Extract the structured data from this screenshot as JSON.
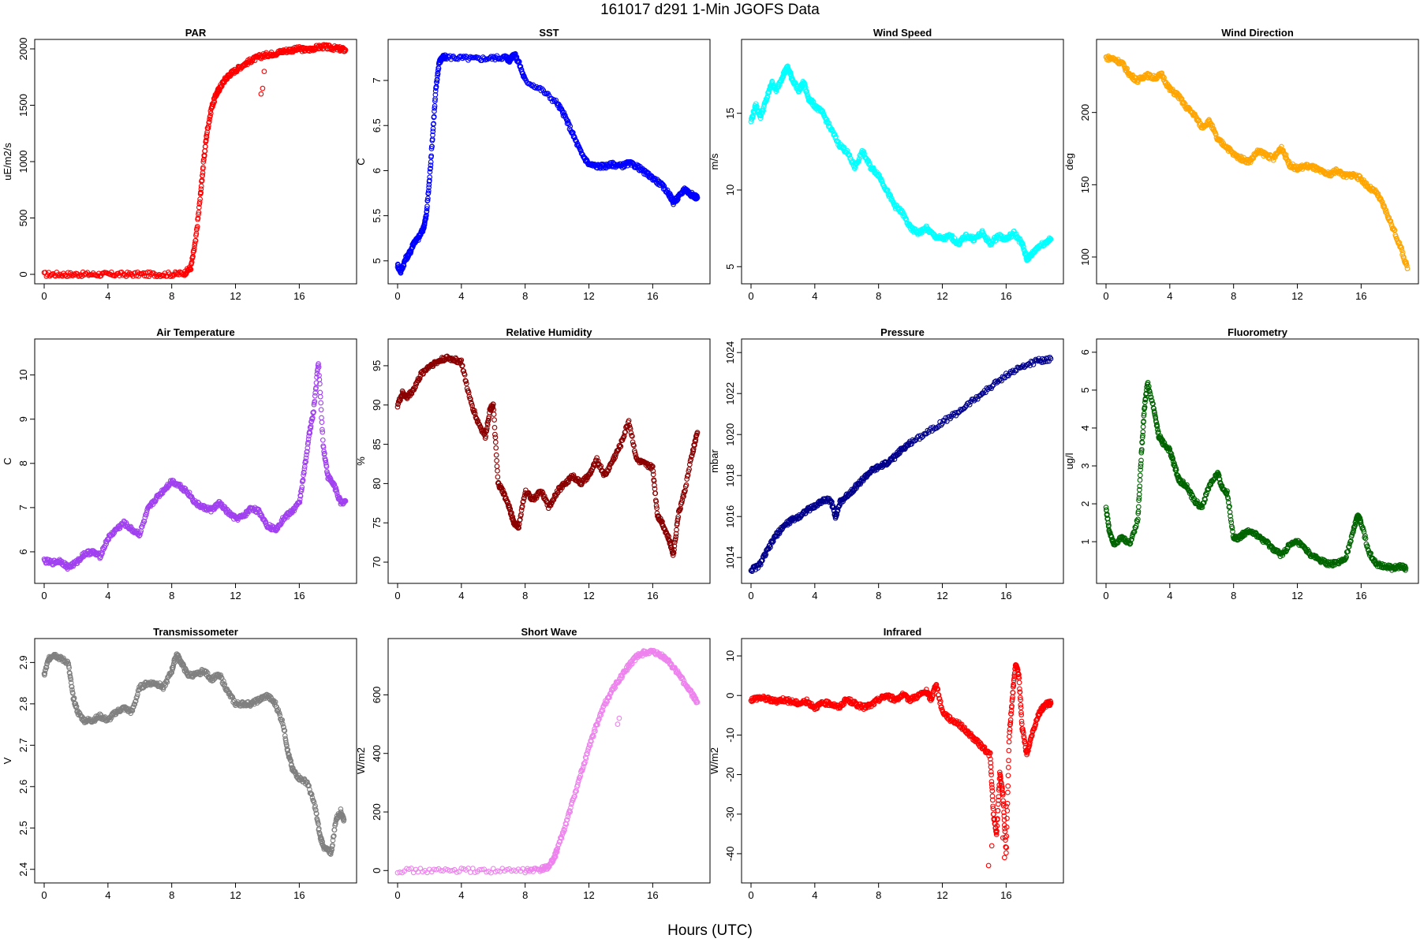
{
  "page": {
    "title": "161017   d291   1-Min  JGOFS Data",
    "xlabel": "Hours (UTC)"
  },
  "chart_data": [
    {
      "type": "scatter",
      "title": "PAR",
      "ylabel": "uE/m2/s",
      "color": "#ff0000",
      "xlim": [
        0,
        19
      ],
      "ylim": [
        0,
        2000
      ],
      "xticks": [
        0,
        4,
        8,
        12,
        16
      ],
      "yticks": [
        0,
        500,
        1000,
        1500,
        2000
      ],
      "x": [
        0,
        1,
        2,
        3,
        4,
        5,
        6,
        7,
        8,
        8.8,
        9.2,
        9.5,
        9.8,
        10,
        10.2,
        10.5,
        10.8,
        11,
        11.3,
        11.6,
        12,
        12.5,
        13,
        13.5,
        14,
        14.5,
        15,
        15.5,
        16,
        16.5,
        17,
        17.5,
        18,
        18.5,
        18.9
      ],
      "y": [
        0,
        0,
        0,
        0,
        0,
        0,
        0,
        0,
        0,
        10,
        60,
        300,
        700,
        1000,
        1250,
        1480,
        1600,
        1650,
        1720,
        1770,
        1810,
        1860,
        1900,
        1930,
        1950,
        1960,
        1980,
        1990,
        2000,
        1990,
        2010,
        2020,
        2010,
        2000,
        1990
      ],
      "outliers": {
        "x": [
          13.6,
          13.7,
          13.8
        ],
        "y": [
          1600,
          1650,
          1800
        ]
      }
    },
    {
      "type": "scatter",
      "title": "SST",
      "ylabel": "C",
      "color": "#0000ff",
      "xlim": [
        0,
        19
      ],
      "ylim": [
        4.85,
        7.35
      ],
      "xticks": [
        0,
        4,
        8,
        12,
        16
      ],
      "yticks": [
        5.0,
        5.5,
        6.0,
        6.5,
        7.0
      ],
      "x": [
        0,
        0.2,
        0.5,
        0.8,
        1,
        1.3,
        1.6,
        1.8,
        2,
        2.2,
        2.4,
        2.6,
        2.8,
        3,
        4,
        5,
        6,
        6.8,
        7,
        7.3,
        7.6,
        8,
        9,
        10,
        10.5,
        11,
        11.5,
        12,
        12.5,
        13,
        13.5,
        14,
        14.5,
        15,
        15.5,
        16,
        16.5,
        17,
        17.3,
        17.6,
        18,
        18.3,
        18.6,
        18.8
      ],
      "y": [
        4.95,
        4.88,
        5.02,
        5.1,
        5.2,
        5.25,
        5.35,
        5.5,
        5.9,
        6.4,
        6.9,
        7.2,
        7.25,
        7.26,
        7.25,
        7.24,
        7.25,
        7.26,
        7.22,
        7.3,
        7.2,
        7.0,
        6.9,
        6.75,
        6.6,
        6.4,
        6.2,
        6.07,
        6.05,
        6.05,
        6.07,
        6.05,
        6.08,
        6.05,
        5.98,
        5.92,
        5.85,
        5.75,
        5.65,
        5.7,
        5.8,
        5.75,
        5.72,
        5.7
      ],
      "outliers": {
        "x": [],
        "y": []
      }
    },
    {
      "type": "scatter",
      "title": "Wind Speed",
      "ylabel": "m/s",
      "color": "#00ffff",
      "xlim": [
        0,
        19
      ],
      "ylim": [
        4.5,
        19.2
      ],
      "xticks": [
        0,
        4,
        8,
        12,
        16
      ],
      "yticks": [
        5,
        10,
        15
      ],
      "x": [
        0,
        0.3,
        0.6,
        1,
        1.3,
        1.6,
        2,
        2.3,
        2.6,
        3,
        3.3,
        3.6,
        4,
        4.5,
        5,
        5.5,
        6,
        6.5,
        7,
        7.5,
        8,
        8.5,
        9,
        9.5,
        10,
        10.5,
        11,
        11.5,
        12,
        12.5,
        13,
        13.5,
        14,
        14.5,
        15,
        15.5,
        16,
        16.5,
        17,
        17.3,
        17.6,
        18,
        18.5,
        18.8
      ],
      "y": [
        14.5,
        15.5,
        14.8,
        16,
        17,
        16.5,
        17.5,
        18,
        17.2,
        16.5,
        17,
        16,
        15.5,
        15,
        14,
        13,
        12.5,
        11.5,
        12.5,
        11.5,
        11,
        10,
        9,
        8.5,
        7.5,
        7.2,
        7.5,
        7,
        6.8,
        7,
        6.5,
        7,
        6.8,
        7.2,
        6.5,
        7,
        6.8,
        7.2,
        6.5,
        5.5,
        5.8,
        6.3,
        6.6,
        6.8
      ],
      "outliers": {
        "x": [],
        "y": []
      }
    },
    {
      "type": "scatter",
      "title": "Wind Direction",
      "ylabel": "deg",
      "color": "#ffa500",
      "xlim": [
        0,
        19
      ],
      "ylim": [
        88,
        244
      ],
      "xticks": [
        0,
        4,
        8,
        12,
        16
      ],
      "yticks": [
        100,
        150,
        200
      ],
      "x": [
        0,
        0.5,
        1,
        1.5,
        2,
        2.5,
        3,
        3.5,
        4,
        4.5,
        5,
        5.5,
        6,
        6.5,
        7,
        7.5,
        8,
        8.5,
        9,
        9.5,
        10,
        10.5,
        11,
        11.5,
        12,
        12.5,
        13,
        13.5,
        14,
        14.5,
        15,
        15.5,
        16,
        16.5,
        17,
        17.5,
        18,
        18.5,
        18.9
      ],
      "y": [
        238,
        237,
        234,
        226,
        222,
        226,
        224,
        226,
        216,
        212,
        204,
        199,
        190,
        194,
        181,
        177,
        171,
        168,
        166,
        173,
        171,
        168,
        176,
        164,
        161,
        163,
        162,
        159,
        157,
        160,
        156,
        157,
        154,
        148,
        144,
        133,
        120,
        106,
        92
      ],
      "outliers": {
        "x": [],
        "y": []
      }
    },
    {
      "type": "scatter",
      "title": "Air Temperature",
      "ylabel": "C",
      "color": "#a040f0",
      "xlim": [
        0,
        19
      ],
      "ylim": [
        5.5,
        10.6
      ],
      "xticks": [
        0,
        4,
        8,
        12,
        16
      ],
      "yticks": [
        6,
        7,
        8,
        9,
        10
      ],
      "x": [
        0,
        0.5,
        1,
        1.5,
        2,
        2.5,
        3,
        3.5,
        4,
        4.5,
        5,
        5.5,
        6,
        6.5,
        7,
        7.5,
        8,
        8.5,
        9,
        9.5,
        10,
        10.5,
        11,
        11.5,
        12,
        12.5,
        13,
        13.5,
        14,
        14.5,
        15,
        15.5,
        16,
        16.3,
        16.6,
        16.9,
        17.2,
        17.5,
        17.8,
        18.2,
        18.6,
        18.9
      ],
      "y": [
        5.8,
        5.75,
        5.8,
        5.65,
        5.75,
        5.95,
        6.0,
        5.9,
        6.3,
        6.5,
        6.65,
        6.5,
        6.4,
        6.95,
        7.2,
        7.4,
        7.6,
        7.5,
        7.35,
        7.1,
        7.0,
        6.95,
        7.1,
        6.9,
        6.75,
        6.8,
        7.0,
        6.9,
        6.6,
        6.5,
        6.75,
        6.9,
        7.1,
        7.8,
        8.6,
        9.2,
        10.3,
        8.4,
        7.7,
        7.5,
        7.1,
        7.15
      ],
      "outliers": {
        "x": [],
        "y": []
      }
    },
    {
      "type": "scatter",
      "title": "Relative Humidity",
      "ylabel": "%",
      "color": "#8b0000",
      "xlim": [
        0,
        19
      ],
      "ylim": [
        68.5,
        97.2
      ],
      "xticks": [
        0,
        4,
        8,
        12,
        16
      ],
      "yticks": [
        70,
        75,
        80,
        85,
        90,
        95
      ],
      "x": [
        0,
        0.3,
        0.6,
        1,
        1.5,
        2,
        2.5,
        3,
        3.5,
        4,
        4.5,
        5,
        5.5,
        5.8,
        6,
        6.3,
        6.6,
        7,
        7.3,
        7.6,
        8,
        8.5,
        9,
        9.5,
        10,
        10.5,
        11,
        11.5,
        12,
        12.5,
        13,
        13.5,
        14,
        14.5,
        15,
        15.5,
        16,
        16.3,
        16.6,
        17,
        17.3,
        17.6,
        18,
        18.5,
        18.8
      ],
      "y": [
        90,
        91.5,
        91,
        92,
        94,
        95,
        95.5,
        96,
        95.8,
        95.5,
        91,
        88,
        86,
        89.5,
        90,
        80,
        79,
        77,
        75,
        74.5,
        79,
        78,
        79,
        77,
        79,
        80,
        81,
        80,
        81,
        83,
        81,
        83,
        85,
        88,
        83,
        82.5,
        82,
        76,
        75,
        73,
        71,
        76,
        79,
        84,
        86.5
      ],
      "outliers": {
        "x": [],
        "y": []
      }
    },
    {
      "type": "scatter",
      "title": "Pressure",
      "ylabel": "mbar",
      "color": "#00008b",
      "xlim": [
        0,
        19
      ],
      "ylim": [
        1013.2,
        1024.2
      ],
      "xticks": [
        0,
        4,
        8,
        12,
        16
      ],
      "yticks": [
        1014,
        1016,
        1018,
        1020,
        1022,
        1024
      ],
      "x": [
        0,
        0.5,
        1,
        1.5,
        2,
        2.5,
        3,
        3.5,
        4,
        4.5,
        5,
        5.3,
        5.6,
        6,
        6.5,
        7,
        7.5,
        8,
        8.5,
        9,
        9.5,
        10,
        11,
        12,
        13,
        14,
        15,
        16,
        17,
        18,
        18.8
      ],
      "y": [
        1013.4,
        1013.6,
        1014.3,
        1015.0,
        1015.5,
        1015.8,
        1016.0,
        1016.3,
        1016.5,
        1016.8,
        1016.8,
        1016.0,
        1016.7,
        1017.0,
        1017.4,
        1017.8,
        1018.2,
        1018.4,
        1018.6,
        1018.9,
        1019.3,
        1019.6,
        1020.1,
        1020.6,
        1021.1,
        1021.7,
        1022.3,
        1022.9,
        1023.3,
        1023.6,
        1023.7
      ],
      "outliers": {
        "x": [],
        "y": []
      }
    },
    {
      "type": "scatter",
      "title": "Fluorometry",
      "ylabel": "ug/l",
      "color": "#006400",
      "xlim": [
        0,
        19
      ],
      "ylim": [
        0.15,
        6.1
      ],
      "xticks": [
        0,
        4,
        8,
        12,
        16
      ],
      "yticks": [
        1,
        2,
        3,
        4,
        5,
        6
      ],
      "x": [
        0,
        0.2,
        0.5,
        1,
        1.5,
        2,
        2.2,
        2.4,
        2.6,
        3,
        3.3,
        3.6,
        4,
        4.3,
        4.6,
        5,
        5.5,
        6,
        6.5,
        7,
        7.3,
        7.6,
        8,
        8.3,
        8.6,
        9,
        9.5,
        10,
        10.5,
        11,
        11.5,
        12,
        12.5,
        13,
        13.5,
        14,
        14.5,
        15,
        15.5,
        15.8,
        16,
        16.5,
        17,
        17.5,
        18,
        18.5,
        18.8
      ],
      "y": [
        1.9,
        1.3,
        0.95,
        1.1,
        0.95,
        1.6,
        3.2,
        4.5,
        5.2,
        4.5,
        3.8,
        3.6,
        3.4,
        3.0,
        2.6,
        2.5,
        2.1,
        1.9,
        2.5,
        2.8,
        2.4,
        2.3,
        1.1,
        1.1,
        1.2,
        1.3,
        1.15,
        1.0,
        0.8,
        0.65,
        0.9,
        1.0,
        0.8,
        0.6,
        0.5,
        0.4,
        0.45,
        0.5,
        1.3,
        1.7,
        1.5,
        0.7,
        0.4,
        0.35,
        0.3,
        0.35,
        0.3
      ],
      "outliers": {
        "x": [],
        "y": []
      }
    },
    {
      "type": "scatter",
      "title": "Transmissometer",
      "ylabel": "V",
      "color": "#808080",
      "xlim": [
        0,
        19
      ],
      "ylim": [
        2.39,
        2.935
      ],
      "xticks": [
        0,
        4,
        8,
        12,
        16
      ],
      "yticks": [
        2.4,
        2.5,
        2.6,
        2.7,
        2.8,
        2.9
      ],
      "x": [
        0,
        0.3,
        0.6,
        1,
        1.5,
        1.8,
        2.1,
        2.5,
        3,
        3.5,
        4,
        4.5,
        5,
        5.5,
        6,
        6.5,
        7,
        7.5,
        8,
        8.3,
        8.6,
        9,
        9.5,
        10,
        10.5,
        11,
        11.5,
        12,
        12.5,
        13,
        13.5,
        14,
        14.5,
        15,
        15.3,
        15.6,
        16,
        16.5,
        17,
        17.3,
        17.6,
        18,
        18.3,
        18.6,
        18.8
      ],
      "y": [
        2.87,
        2.91,
        2.92,
        2.91,
        2.9,
        2.82,
        2.78,
        2.76,
        2.76,
        2.77,
        2.76,
        2.78,
        2.79,
        2.78,
        2.84,
        2.85,
        2.85,
        2.84,
        2.88,
        2.92,
        2.9,
        2.87,
        2.87,
        2.88,
        2.86,
        2.87,
        2.83,
        2.8,
        2.8,
        2.8,
        2.81,
        2.82,
        2.8,
        2.75,
        2.68,
        2.64,
        2.62,
        2.61,
        2.55,
        2.48,
        2.45,
        2.44,
        2.52,
        2.54,
        2.52
      ],
      "outliers": {
        "x": [],
        "y": []
      }
    },
    {
      "type": "scatter",
      "title": "Short Wave",
      "ylabel": "W/m2",
      "color": "#ee82ee",
      "xlim": [
        0,
        19
      ],
      "ylim": [
        -10,
        760
      ],
      "xticks": [
        0,
        4,
        8,
        12,
        16
      ],
      "yticks": [
        0,
        200,
        400,
        600
      ],
      "x": [
        0,
        2,
        4,
        6,
        8,
        9,
        9.5,
        9.8,
        10,
        10.5,
        11,
        11.5,
        12,
        12.5,
        13,
        13.5,
        14,
        14.5,
        15,
        15.5,
        16,
        16.5,
        17,
        17.5,
        18,
        18.5,
        18.8
      ],
      "y": [
        0,
        0,
        0,
        0,
        0,
        3,
        15,
        40,
        70,
        150,
        240,
        330,
        420,
        500,
        570,
        620,
        660,
        700,
        730,
        745,
        745,
        735,
        715,
        680,
        640,
        600,
        575
      ],
      "outliers": {
        "x": [
          13.8,
          13.9
        ],
        "y": [
          500,
          520
        ]
      }
    },
    {
      "type": "scatter",
      "title": "Infrared",
      "ylabel": "W/m2",
      "color": "#ff0000",
      "xlim": [
        0,
        19
      ],
      "ylim": [
        -45,
        12
      ],
      "xticks": [
        0,
        4,
        8,
        12,
        16
      ],
      "yticks": [
        -40,
        -30,
        -20,
        -10,
        0,
        10
      ],
      "x": [
        0,
        0.5,
        1,
        1.5,
        2,
        2.5,
        3,
        3.5,
        4,
        4.5,
        5,
        5.5,
        6,
        6.5,
        7,
        7.5,
        8,
        8.5,
        9,
        9.5,
        10,
        10.5,
        11,
        11.3,
        11.6,
        12,
        12.5,
        13,
        13.5,
        14,
        14.5,
        15,
        15.2,
        15.4,
        15.6,
        15.8,
        16,
        16.2,
        16.4,
        16.6,
        16.8,
        17,
        17.3,
        17.6,
        18,
        18.3,
        18.6,
        18.8
      ],
      "y": [
        -1,
        -0.5,
        -0.8,
        -1.5,
        -1,
        -1.5,
        -2,
        -1.5,
        -3,
        -2,
        -2,
        -3,
        -1,
        -2,
        -3,
        -2.5,
        -1,
        0,
        -1,
        0,
        -1,
        0,
        1,
        -1,
        3,
        -4,
        -6,
        -7,
        -9,
        -11,
        -13,
        -15,
        -30,
        -35,
        -20,
        -25,
        -40,
        -10,
        0,
        8,
        5,
        -8,
        -15,
        -10,
        -5,
        -3,
        -2,
        -2
      ],
      "outliers": {
        "x": [
          14.9,
          15.1,
          15.9,
          15.8,
          16.0
        ],
        "y": [
          -43,
          -38,
          -41,
          -36,
          -28
        ]
      }
    }
  ]
}
